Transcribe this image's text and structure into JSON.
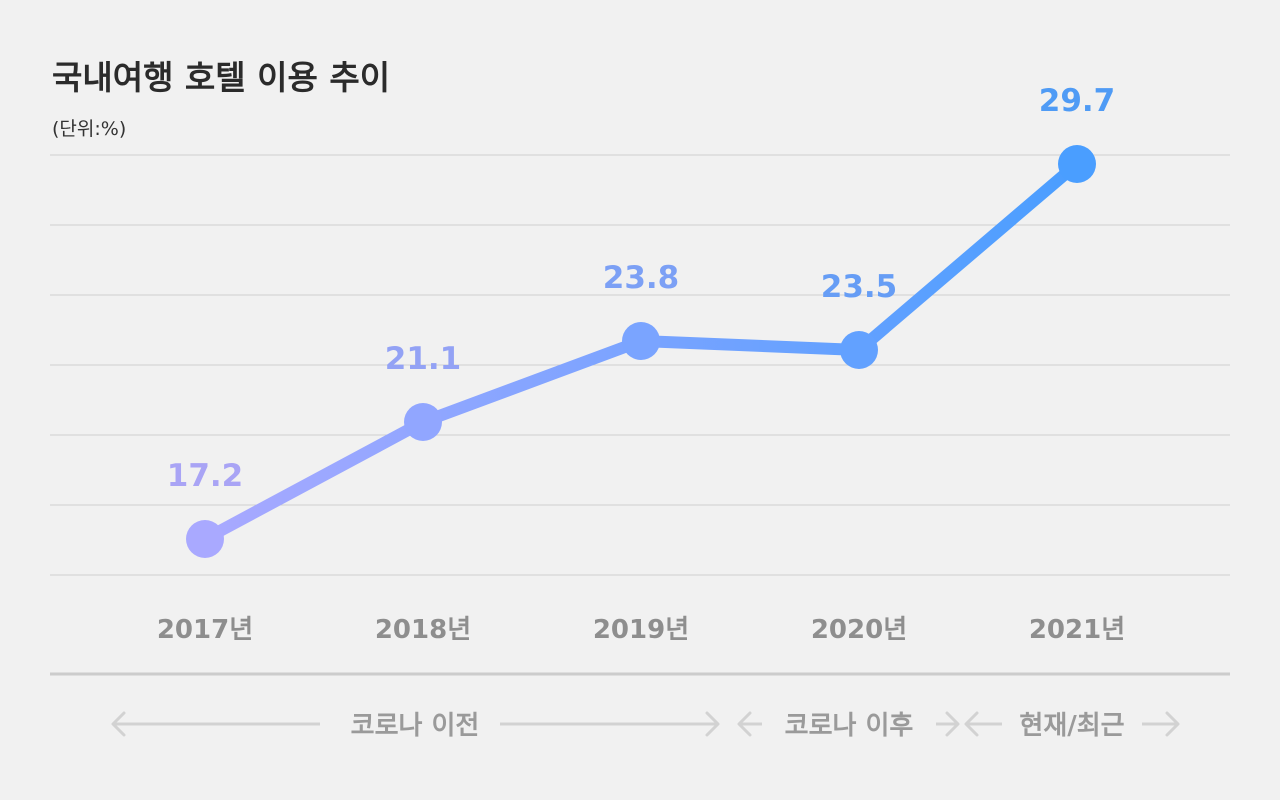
{
  "chart_data": {
    "type": "line",
    "title": "국내여행 호텔 이용 추이",
    "unit_label": "(단위:%)",
    "categories": [
      "2017년",
      "2018년",
      "2019년",
      "2020년",
      "2021년"
    ],
    "series": [
      {
        "name": "호텔 이용",
        "values": [
          17.2,
          21.1,
          23.8,
          23.5,
          29.7
        ]
      }
    ],
    "ylim": [
      16,
      30
    ],
    "grid": true,
    "periods": [
      {
        "label": "코로나 이전",
        "from": 0,
        "to": 2
      },
      {
        "label": "코로나 이후",
        "from": 3,
        "to": 3
      },
      {
        "label": "현재/최근",
        "from": 4,
        "to": 4
      }
    ],
    "colors": {
      "start": "#a9a9ff",
      "end": "#4a9eff",
      "label_start": "#a9a4f5",
      "label_end": "#4f9bf5"
    }
  }
}
